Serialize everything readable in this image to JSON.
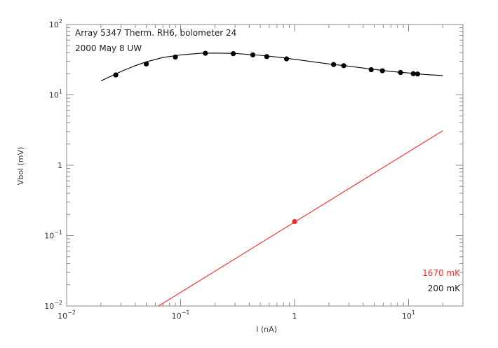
{
  "chart_data": {
    "type": "scatter",
    "annotations": [
      "Array 5347 Therm. RH6, bolometer 24",
      "2000 May 8 UW"
    ],
    "xlabel": "I (nA)",
    "ylabel": "Vbol (mV)",
    "x_scale": "log",
    "y_scale": "log",
    "xlim": [
      0.01,
      30
    ],
    "ylim": [
      0.01,
      100
    ],
    "grid": false,
    "legend_position": "bottom-right",
    "x_ticks": [
      {
        "base": "10",
        "exp": "−2"
      },
      {
        "base": "10",
        "exp": "−1"
      },
      {
        "base": "1",
        "exp": ""
      },
      {
        "base": "10",
        "exp": "1"
      }
    ],
    "y_ticks": [
      {
        "base": "10",
        "exp": "−2"
      },
      {
        "base": "10",
        "exp": "−1"
      },
      {
        "base": "1",
        "exp": ""
      },
      {
        "base": "10",
        "exp": "1"
      },
      {
        "base": "10",
        "exp": "2"
      }
    ],
    "series": [
      {
        "name": "200 mK",
        "color": "#000000",
        "points": {
          "x": [
            0.027,
            0.05,
            0.09,
            0.165,
            0.29,
            0.43,
            0.57,
            0.85,
            2.2,
            2.7,
            4.7,
            5.9,
            8.5,
            11.0,
            12.0
          ],
          "y": [
            19.2,
            27.5,
            34.5,
            39.0,
            38.5,
            37.0,
            35.0,
            32.5,
            27.0,
            26.0,
            22.8,
            22.0,
            20.8,
            20.0,
            19.8
          ]
        },
        "fit_curve": {
          "x": [
            0.02,
            0.03,
            0.04,
            0.05,
            0.07,
            0.1,
            0.15,
            0.2,
            0.3,
            0.5,
            0.7,
            1.0,
            2.0,
            3.0,
            5.0,
            7.0,
            10.0,
            14.0,
            20.0
          ],
          "y": [
            15.8,
            21.5,
            26.0,
            29.5,
            34.0,
            37.0,
            39.0,
            39.3,
            38.8,
            36.5,
            34.5,
            32.0,
            27.5,
            25.5,
            23.0,
            21.5,
            20.5,
            19.5,
            18.8
          ]
        }
      },
      {
        "name": "1670 mK",
        "color": "#ff2a2a",
        "points": {
          "x": [
            1.0
          ],
          "y": [
            0.158
          ]
        },
        "fit_line": {
          "x": [
            0.064,
            20.0
          ],
          "y": [
            0.01,
            3.1
          ]
        }
      }
    ]
  }
}
